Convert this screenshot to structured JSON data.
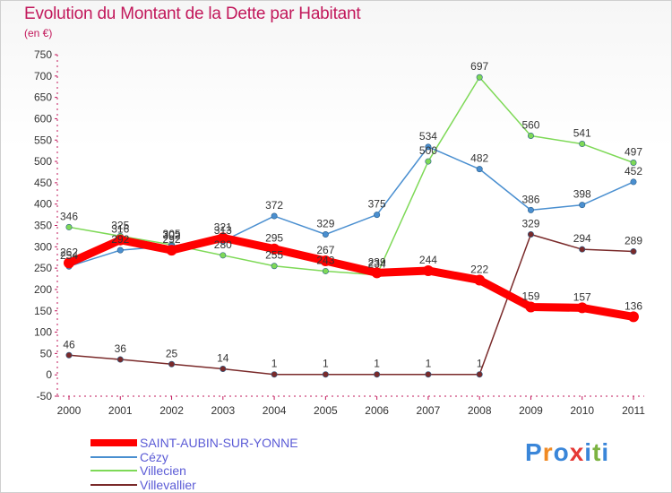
{
  "title": "Evolution du Montant de la Dette par Habitant",
  "subtitle": "(en €)",
  "logo": {
    "text": "Proxiti",
    "colors": [
      "#3a86d9",
      "#f08a24",
      "#3a86d9",
      "#e53935",
      "#3a86d9",
      "#7cb342",
      "#3a86d9"
    ]
  },
  "chart_data": {
    "type": "line",
    "categories": [
      "2000",
      "2001",
      "2002",
      "2003",
      "2004",
      "2005",
      "2006",
      "2007",
      "2008",
      "2009",
      "2010",
      "2011"
    ],
    "ylim": [
      -50,
      750
    ],
    "yticks": [
      -50,
      0,
      50,
      100,
      150,
      200,
      250,
      300,
      350,
      400,
      450,
      500,
      550,
      600,
      650,
      700,
      750
    ],
    "grid": false,
    "legend_position": "bottom-left",
    "series": [
      {
        "name": "SAINT-AUBIN-SUR-YONNE",
        "color": "#ff0000",
        "width": 9,
        "values": [
          262,
          316,
          292,
          321,
          295,
          267,
          239,
          244,
          222,
          159,
          157,
          136
        ]
      },
      {
        "name": "Cézy",
        "color": "#4a8fd0",
        "width": 1.5,
        "values": [
          254,
          292,
          302,
          313,
          372,
          329,
          375,
          534,
          482,
          386,
          398,
          452
        ]
      },
      {
        "name": "Villecien",
        "color": "#7ed957",
        "width": 1.5,
        "values": [
          346,
          325,
          305,
          280,
          255,
          243,
          234,
          500,
          697,
          560,
          541,
          497
        ]
      },
      {
        "name": "Villevallier",
        "color": "#7a2a2a",
        "width": 1.5,
        "values": [
          46,
          36,
          25,
          14,
          1,
          1,
          1,
          1,
          1,
          329,
          294,
          289
        ]
      }
    ]
  }
}
